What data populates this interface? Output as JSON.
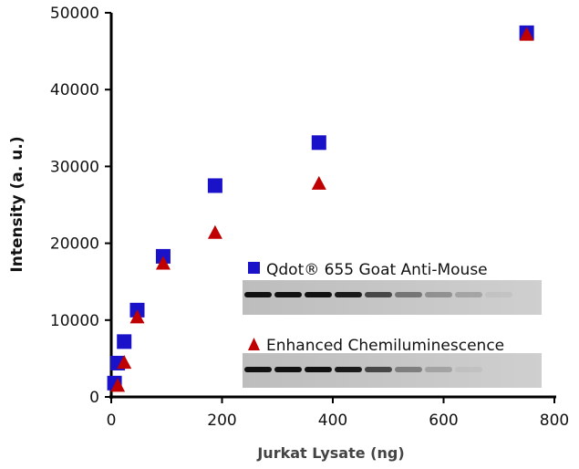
{
  "chart_data": {
    "type": "scatter",
    "xlabel": "Jurkat Lysate (ng)",
    "ylabel": "Intensity (a. u.)",
    "xlim": [
      0,
      800
    ],
    "ylim": [
      0,
      50000
    ],
    "xticks": [
      "0",
      "200",
      "400",
      "600",
      "800"
    ],
    "yticks": [
      "0",
      "10000",
      "20000",
      "30000",
      "40000",
      "50000"
    ],
    "grid": false,
    "legend_placement": "inset-right",
    "series": [
      {
        "name": "Qdot® 655 Goat Anti-Mouse",
        "marker": "square",
        "color": "#1a12c8",
        "x": [
          5.9,
          11.7,
          23.4,
          46.9,
          93.75,
          187.5,
          375,
          750
        ],
        "y": [
          1800,
          4400,
          7200,
          11300,
          18300,
          27500,
          33100,
          47400
        ]
      },
      {
        "name": "Enhanced Chemiluminescence",
        "marker": "triangle",
        "color": "#c00000",
        "x": [
          11.7,
          23.4,
          46.9,
          93.75,
          187.5,
          375,
          750
        ],
        "y": [
          1500,
          4500,
          10400,
          17400,
          21400,
          27800,
          47200
        ]
      }
    ]
  }
}
